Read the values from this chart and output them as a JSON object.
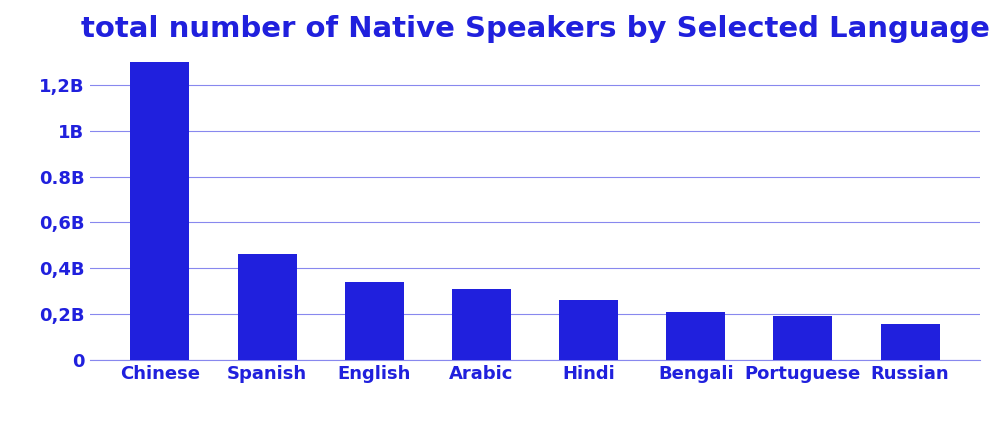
{
  "title": "total number of Native Speakers by Selected Language",
  "categories": [
    "Chinese",
    "Spanish",
    "English",
    "Arabic",
    "Hindi",
    "Bengali",
    "Portuguese",
    "Russian"
  ],
  "values": [
    1300000000,
    460000000,
    340000000,
    310000000,
    260000000,
    210000000,
    190000000,
    155000000
  ],
  "bar_color": "#2020dd",
  "title_color": "#2020dd",
  "tick_color": "#2020dd",
  "grid_color": "#8888ee",
  "background_color": "#ffffff",
  "ylim": [
    0,
    1350000000
  ],
  "yticks": [
    0,
    200000000,
    400000000,
    600000000,
    800000000,
    1000000000,
    1200000000
  ],
  "ytick_labels": [
    "0",
    "0,2B",
    "0,4B",
    "0,6B",
    "0.8B",
    "1B",
    "1,2B"
  ],
  "title_fontsize": 21,
  "tick_fontsize": 13,
  "bar_width": 0.55
}
